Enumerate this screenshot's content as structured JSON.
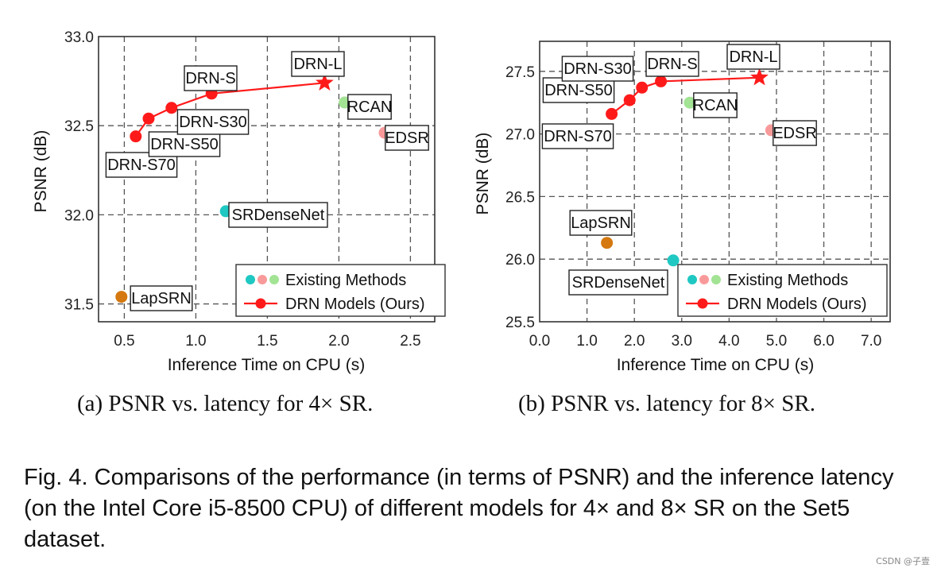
{
  "colors": {
    "drn": "#ff1a1a",
    "srdensenet": "#1fc8c2",
    "edsr": "#f99a9a",
    "rcan": "#a3e394",
    "lapsrn": "#d4780f"
  },
  "chart_data": [
    {
      "type": "scatter",
      "subcaption": "(a) PSNR vs. latency for 4× SR.",
      "xlabel": "Inference Time on CPU (s)",
      "ylabel": "PSNR (dB)",
      "xlim": [
        0.32,
        2.67
      ],
      "ylim": [
        31.4,
        33.0
      ],
      "xticks": [
        "0.5",
        "1.0",
        "1.5",
        "2.0",
        "2.5"
      ],
      "yticks": [
        "31.5",
        "32.0",
        "32.5",
        "33.0"
      ],
      "grid": true,
      "legend_position": "bottom-right",
      "legend": [
        "Existing Methods",
        "DRN Models (Ours)"
      ],
      "drn_series": {
        "name": "DRN Models (Ours)",
        "points": [
          {
            "label": "DRN-S70",
            "x": 0.58,
            "y": 32.44
          },
          {
            "label": "DRN-S50",
            "x": 0.67,
            "y": 32.54
          },
          {
            "label": "DRN-S30",
            "x": 0.83,
            "y": 32.6
          },
          {
            "label": "DRN-S",
            "x": 1.11,
            "y": 32.68
          },
          {
            "label": "DRN-L",
            "x": 1.9,
            "y": 32.74
          }
        ]
      },
      "existing": {
        "name": "Existing Methods",
        "points": [
          {
            "label": "RCAN",
            "x": 2.04,
            "y": 32.63,
            "color": "rcan"
          },
          {
            "label": "EDSR",
            "x": 2.32,
            "y": 32.46,
            "color": "edsr"
          },
          {
            "label": "SRDenseNet",
            "x": 1.21,
            "y": 32.02,
            "color": "srdensenet"
          },
          {
            "label": "LapSRN",
            "x": 0.48,
            "y": 31.54,
            "color": "lapsrn"
          }
        ]
      }
    },
    {
      "type": "scatter",
      "subcaption": "(b) PSNR vs. latency for 8× SR.",
      "xlabel": "Inference Time on CPU (s)",
      "ylabel": "PSNR (dB)",
      "xlim": [
        0.0,
        7.4
      ],
      "ylim": [
        25.5,
        27.74
      ],
      "xticks": [
        "0.0",
        "1.0",
        "2.0",
        "3.0",
        "4.0",
        "5.0",
        "6.0",
        "7.0"
      ],
      "yticks": [
        "25.5",
        "26.0",
        "26.5",
        "27.0",
        "27.5"
      ],
      "grid": true,
      "legend_position": "bottom-right",
      "legend": [
        "Existing Methods",
        "DRN Models (Ours)"
      ],
      "drn_series": {
        "name": "DRN Models (Ours)",
        "points": [
          {
            "label": "DRN-S70",
            "x": 1.52,
            "y": 27.16
          },
          {
            "label": "DRN-S50",
            "x": 1.9,
            "y": 27.27
          },
          {
            "label": "DRN-S30",
            "x": 2.16,
            "y": 27.37
          },
          {
            "label": "DRN-S",
            "x": 2.56,
            "y": 27.42
          },
          {
            "label": "DRN-L",
            "x": 4.64,
            "y": 27.45
          }
        ]
      },
      "existing": {
        "name": "Existing Methods",
        "points": [
          {
            "label": "RCAN",
            "x": 3.17,
            "y": 27.25,
            "color": "rcan"
          },
          {
            "label": "EDSR",
            "x": 4.89,
            "y": 27.03,
            "color": "edsr"
          },
          {
            "label": "LapSRN",
            "x": 1.42,
            "y": 26.13,
            "color": "lapsrn"
          },
          {
            "label": "SRDenseNet",
            "x": 2.82,
            "y": 25.99,
            "color": "srdensenet"
          }
        ]
      }
    }
  ],
  "caption": "Fig. 4.  Comparisons of the performance (in terms of PSNR) and the inference latency (on the Intel Core i5-8500 CPU) of different models for 4× and 8× SR on the Set5 dataset.",
  "watermark": "CSDN @子壹"
}
